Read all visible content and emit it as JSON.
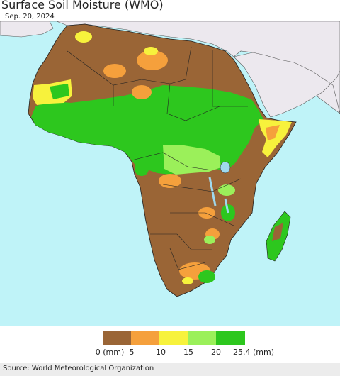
{
  "title": "Surface Soil Moisture (WMO)",
  "date": "Sep. 20, 2024",
  "legend": {
    "colors": [
      "#9a6536",
      "#f5a03c",
      "#f7f23c",
      "#9bf05a",
      "#2dc71e"
    ],
    "tick_labels": [
      "0 (mm)",
      "5",
      "10",
      "15",
      "20",
      "25.4 (mm)"
    ]
  },
  "map_colors": {
    "ocean": "#bff3f8",
    "other_land": "#ece8ee",
    "lake": "#9fd9ee",
    "border": "#222222"
  },
  "source": "Source: World Meteorological Organization"
}
